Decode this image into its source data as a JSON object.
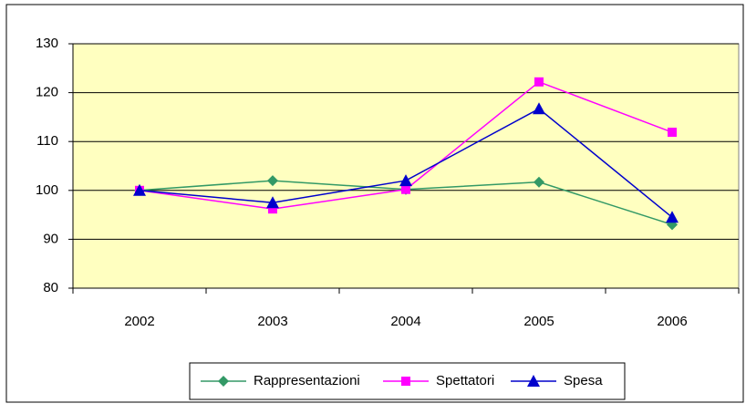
{
  "chart_data": {
    "type": "line",
    "categories": [
      "2002",
      "2003",
      "2004",
      "2005",
      "2006"
    ],
    "series": [
      {
        "name": "Rappresentazioni",
        "color": "#339966",
        "marker": "diamond",
        "values": [
          100,
          102,
          100.2,
          101.7,
          93
        ]
      },
      {
        "name": "Spettatori",
        "color": "#ff00ff",
        "marker": "square",
        "values": [
          100,
          96.2,
          100.2,
          122.2,
          111.9
        ]
      },
      {
        "name": "Spesa",
        "color": "#0000cc",
        "marker": "triangle",
        "values": [
          100,
          97.5,
          102,
          116.7,
          94.5
        ]
      }
    ],
    "ylim": [
      80,
      130
    ],
    "yticks": [
      80,
      90,
      100,
      110,
      120,
      130
    ],
    "grid": true,
    "legend": "bottom"
  }
}
